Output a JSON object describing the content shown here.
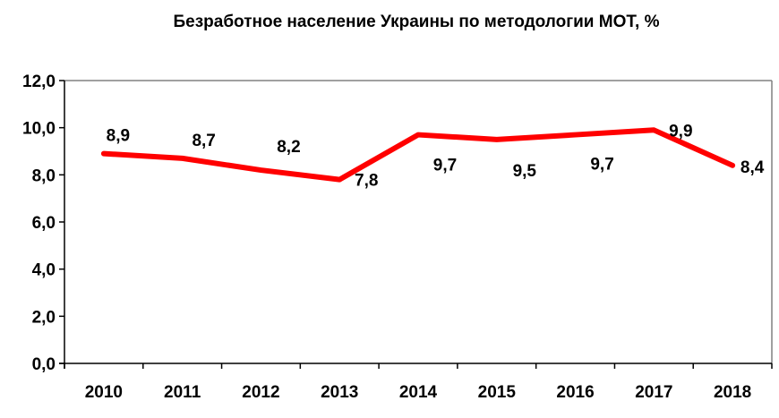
{
  "chart_data": {
    "type": "line",
    "title": "Безработное население Украины по методологии МОТ, %",
    "xlabel": "",
    "ylabel": "",
    "categories": [
      "2010",
      "2011",
      "2012",
      "2013",
      "2014",
      "2015",
      "2016",
      "2017",
      "2018"
    ],
    "values": [
      8.9,
      8.7,
      8.2,
      7.8,
      9.7,
      9.5,
      9.7,
      9.9,
      8.4
    ],
    "data_labels": [
      "8,9",
      "8,7",
      "8,2",
      "7,8",
      "9,7",
      "9,5",
      "9,7",
      "9,9",
      "8,4"
    ],
    "ylim": [
      0,
      12
    ],
    "yticks": [
      "0,0",
      "2,0",
      "4,0",
      "6,0",
      "8,0",
      "10,0",
      "12,0"
    ],
    "grid": false,
    "legend": "none",
    "line_color": "#ff0000"
  }
}
